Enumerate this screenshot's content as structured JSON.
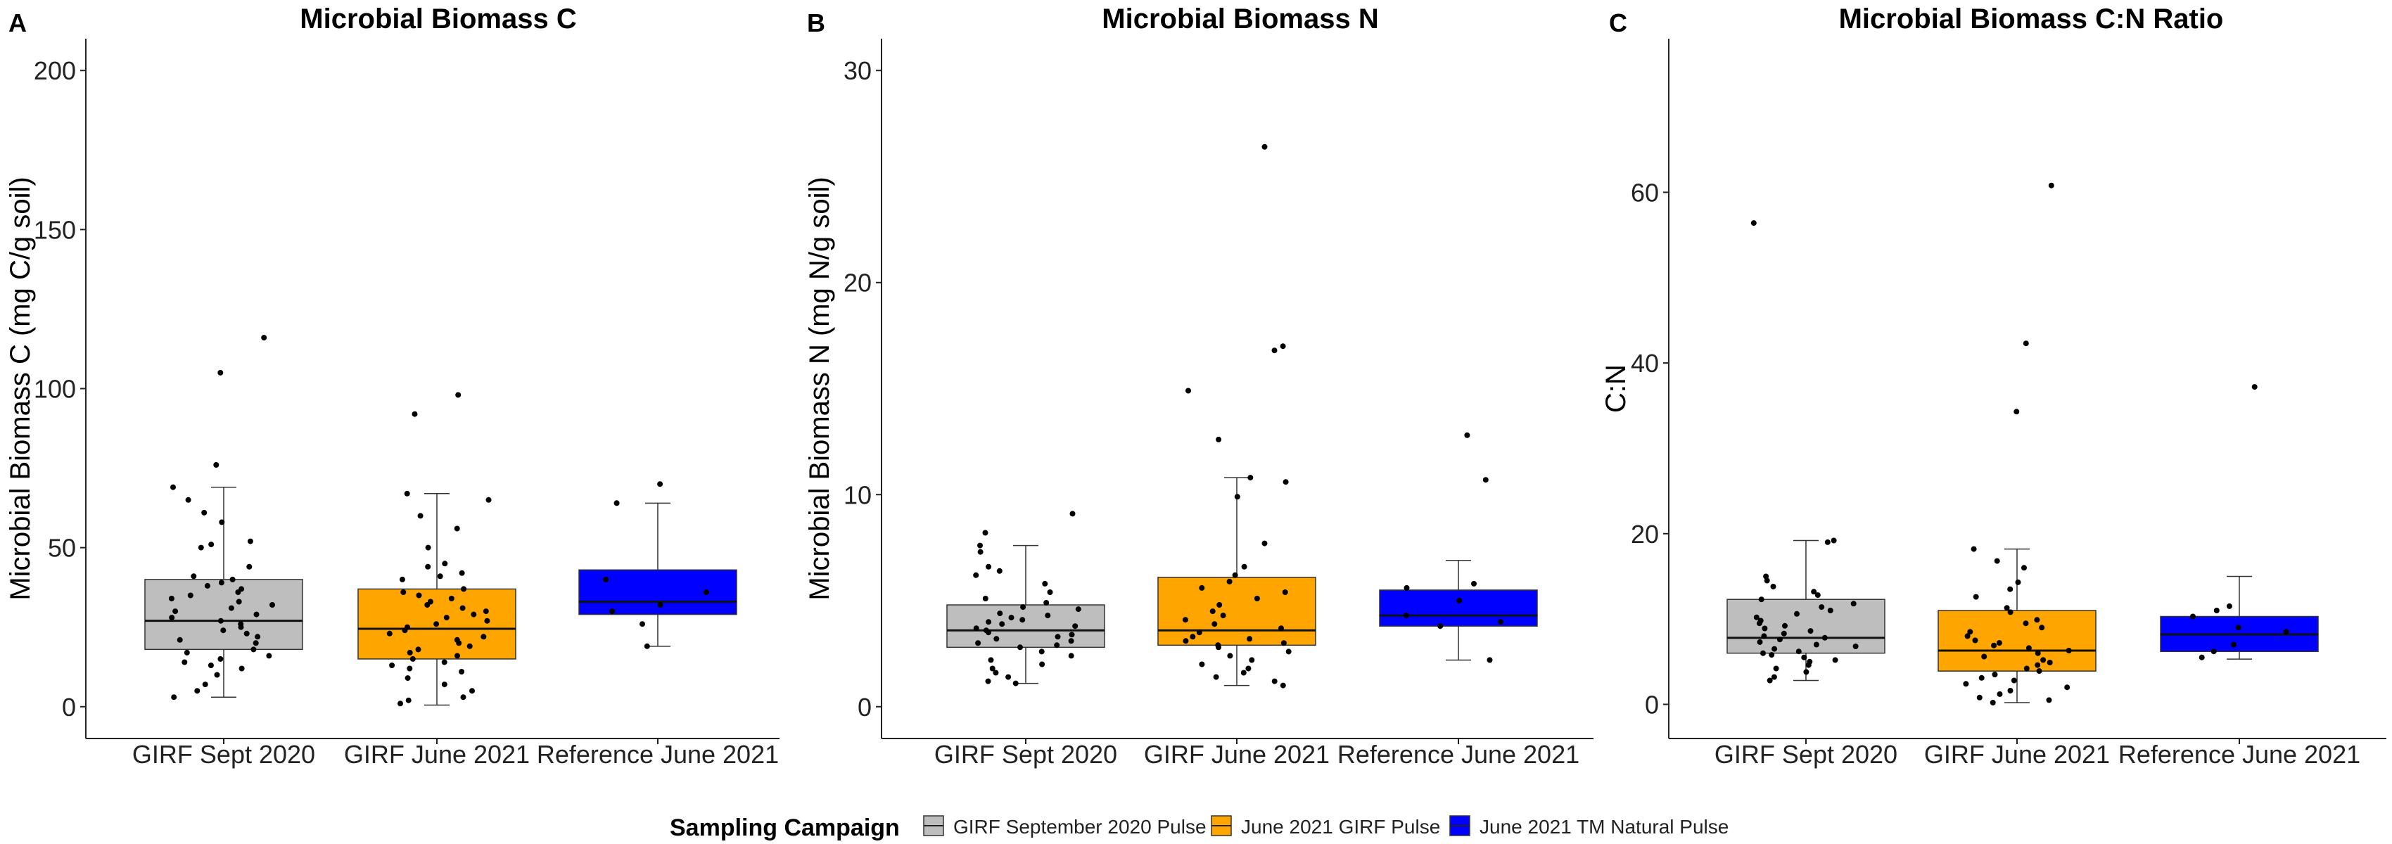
{
  "figure": {
    "legend_title": "Sampling Campaign",
    "legend_items": [
      {
        "label": "GIRF September 2020 Pulse",
        "color": "#bebebe"
      },
      {
        "label": "June 2021 GIRF Pulse",
        "color": "#ffa500"
      },
      {
        "label": "June 2021 TM Natural Pulse",
        "color": "#0000ff"
      }
    ]
  },
  "chart_data": [
    {
      "type": "box",
      "panel": "A",
      "title": "Microbial Biomass C",
      "ylabel": "Microbial Biomass C (mg C/g soil)",
      "ylim": [
        -10,
        210
      ],
      "yticks": [
        0,
        50,
        100,
        150,
        200
      ],
      "categories": [
        "GIRF Sept 2020",
        "GIRF June 2021",
        "Reference June 2021"
      ],
      "colors": [
        "#bebebe",
        "#ffa500",
        "#0000ff"
      ],
      "boxes": [
        {
          "whisker_low": 3,
          "q1": 18,
          "median": 27,
          "q3": 40,
          "whisker_high": 69
        },
        {
          "whisker_low": 0.5,
          "q1": 15,
          "median": 24.5,
          "q3": 37,
          "whisker_high": 67
        },
        {
          "whisker_low": 19,
          "q1": 29,
          "median": 33,
          "q3": 43,
          "whisker_high": 64
        }
      ],
      "points": [
        [
          116,
          105,
          76,
          69,
          65,
          61,
          58,
          52,
          51,
          50,
          44,
          41,
          40,
          39,
          38,
          37,
          36,
          35,
          34,
          33,
          32,
          31,
          30,
          29,
          28,
          27,
          26,
          25,
          24,
          23,
          22,
          21,
          20,
          18,
          17,
          16,
          15,
          14,
          13,
          12,
          10,
          7,
          5,
          3
        ],
        [
          98,
          92,
          67,
          65,
          60,
          56,
          50,
          45,
          44,
          42,
          41,
          40,
          37,
          36,
          35,
          34,
          33,
          32,
          31,
          30,
          29,
          28,
          27,
          26,
          25,
          24,
          23,
          22,
          21,
          20,
          19,
          18,
          17,
          16,
          15,
          14,
          13,
          12,
          11,
          9,
          7,
          5,
          3,
          2,
          1
        ],
        [
          70,
          64,
          40,
          36,
          32,
          30,
          26,
          19
        ]
      ]
    },
    {
      "type": "box",
      "panel": "B",
      "title": "Microbial Biomass N",
      "ylabel": "Microbial Biomass N (mg N/g soil)",
      "ylim": [
        -1.5,
        31.5
      ],
      "yticks": [
        0,
        10,
        20,
        30
      ],
      "categories": [
        "GIRF Sept 2020",
        "GIRF June 2021",
        "Reference June 2021"
      ],
      "colors": [
        "#bebebe",
        "#ffa500",
        "#0000ff"
      ],
      "boxes": [
        {
          "whisker_low": 1.1,
          "q1": 2.8,
          "median": 3.6,
          "q3": 4.8,
          "whisker_high": 7.6
        },
        {
          "whisker_low": 1.0,
          "q1": 2.9,
          "median": 3.6,
          "q3": 6.1,
          "whisker_high": 10.8
        },
        {
          "whisker_low": 2.2,
          "q1": 3.8,
          "median": 4.3,
          "q3": 5.5,
          "whisker_high": 6.9
        }
      ],
      "points": [
        [
          9.1,
          8.2,
          7.6,
          7.3,
          6.6,
          6.4,
          6.2,
          5.8,
          5.4,
          5.1,
          4.9,
          4.7,
          4.6,
          4.4,
          4.3,
          4.2,
          4.1,
          4.0,
          3.9,
          3.8,
          3.7,
          3.6,
          3.5,
          3.4,
          3.3,
          3.2,
          3.1,
          3.0,
          2.9,
          2.8,
          2.6,
          2.4,
          2.2,
          2.0,
          1.8,
          1.6,
          1.4,
          1.2,
          1.1
        ],
        [
          26.4,
          17.0,
          16.8,
          14.9,
          12.6,
          10.8,
          10.6,
          9.9,
          7.7,
          6.6,
          6.2,
          5.9,
          5.6,
          5.4,
          5.1,
          4.8,
          4.5,
          4.3,
          4.1,
          3.9,
          3.7,
          3.5,
          3.3,
          3.2,
          3.1,
          3.0,
          2.9,
          2.8,
          2.6,
          2.4,
          2.2,
          2.0,
          1.8,
          1.6,
          1.4,
          1.2,
          1.0
        ],
        [
          12.8,
          10.7,
          5.8,
          5.6,
          5.0,
          4.3,
          4.0,
          3.8,
          2.2
        ]
      ]
    },
    {
      "type": "box",
      "panel": "C",
      "title": "Microbial Biomass C:N Ratio",
      "ylabel": "C:N",
      "ylim": [
        -4,
        78
      ],
      "yticks": [
        0,
        20,
        40,
        60
      ],
      "categories": [
        "GIRF Sept 2020",
        "GIRF June 2021",
        "Reference June 2021"
      ],
      "colors": [
        "#bebebe",
        "#ffa500",
        "#0000ff"
      ],
      "boxes": [
        {
          "whisker_low": 2.8,
          "q1": 6.0,
          "median": 7.8,
          "q3": 12.3,
          "whisker_high": 19.2
        },
        {
          "whisker_low": 0.2,
          "q1": 3.9,
          "median": 6.3,
          "q3": 11.0,
          "whisker_high": 18.2
        },
        {
          "whisker_low": 5.3,
          "q1": 6.2,
          "median": 8.2,
          "q3": 10.3,
          "whisker_high": 15.0
        }
      ],
      "points": [
        [
          56.4,
          19.2,
          19.0,
          15.0,
          14.5,
          13.8,
          13.2,
          12.8,
          12.3,
          11.8,
          11.4,
          11.0,
          10.6,
          10.2,
          9.8,
          9.5,
          9.2,
          8.9,
          8.6,
          8.3,
          8.0,
          7.8,
          7.6,
          7.3,
          7.0,
          6.8,
          6.5,
          6.2,
          6.0,
          5.8,
          5.5,
          5.2,
          5.0,
          4.6,
          4.2,
          3.8,
          3.2,
          2.8
        ],
        [
          60.8,
          42.3,
          34.3,
          18.2,
          16.8,
          16.0,
          14.3,
          13.5,
          12.6,
          11.3,
          10.8,
          9.9,
          9.5,
          9.0,
          8.5,
          8.0,
          7.5,
          7.2,
          6.9,
          6.6,
          6.3,
          6.0,
          5.6,
          5.2,
          4.9,
          4.6,
          4.2,
          3.9,
          3.5,
          3.1,
          2.8,
          2.4,
          2.0,
          1.6,
          1.2,
          0.8,
          0.5,
          0.2
        ],
        [
          37.2,
          11.5,
          11.0,
          10.3,
          9.0,
          8.5,
          7.0,
          6.2,
          5.5
        ]
      ]
    }
  ]
}
